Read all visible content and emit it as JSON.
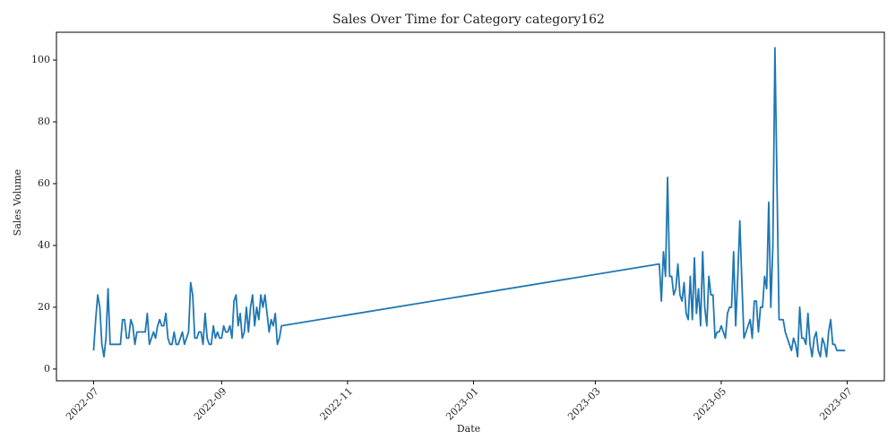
{
  "chart_data": {
    "type": "line",
    "title": "Sales Over Time for Category category162",
    "xlabel": "Date",
    "ylabel": "Sales Volume",
    "x": [
      "2022-07-01",
      "2022-07-02",
      "2022-07-03",
      "2022-07-04",
      "2022-07-05",
      "2022-07-06",
      "2022-07-07",
      "2022-07-08",
      "2022-07-09",
      "2022-07-10",
      "2022-07-11",
      "2022-07-12",
      "2022-07-13",
      "2022-07-14",
      "2022-07-15",
      "2022-07-16",
      "2022-07-17",
      "2022-07-18",
      "2022-07-19",
      "2022-07-20",
      "2022-07-21",
      "2022-07-22",
      "2022-07-23",
      "2022-07-24",
      "2022-07-25",
      "2022-07-26",
      "2022-07-27",
      "2022-07-28",
      "2022-07-29",
      "2022-07-30",
      "2022-07-31",
      "2022-08-01",
      "2022-08-02",
      "2022-08-03",
      "2022-08-04",
      "2022-08-05",
      "2022-08-06",
      "2022-08-07",
      "2022-08-08",
      "2022-08-09",
      "2022-08-10",
      "2022-08-11",
      "2022-08-12",
      "2022-08-13",
      "2022-08-14",
      "2022-08-15",
      "2022-08-16",
      "2022-08-17",
      "2022-08-18",
      "2022-08-19",
      "2022-08-20",
      "2022-08-21",
      "2022-08-22",
      "2022-08-23",
      "2022-08-24",
      "2022-08-25",
      "2022-08-26",
      "2022-08-27",
      "2022-08-28",
      "2022-08-29",
      "2022-08-30",
      "2022-08-31",
      "2022-09-01",
      "2022-09-02",
      "2022-09-03",
      "2022-09-04",
      "2022-09-05",
      "2022-09-06",
      "2022-09-07",
      "2022-09-08",
      "2022-09-09",
      "2022-09-10",
      "2022-09-11",
      "2022-09-12",
      "2022-09-13",
      "2022-09-14",
      "2022-09-15",
      "2022-09-16",
      "2022-09-17",
      "2022-09-18",
      "2022-09-19",
      "2022-09-20",
      "2022-09-21",
      "2022-09-22",
      "2022-09-23",
      "2022-09-24",
      "2022-09-25",
      "2022-09-26",
      "2022-09-27",
      "2022-09-28",
      "2022-09-29",
      "2022-09-30",
      "2023-04-01",
      "2023-04-02",
      "2023-04-03",
      "2023-04-04",
      "2023-04-05",
      "2023-04-06",
      "2023-04-07",
      "2023-04-08",
      "2023-04-09",
      "2023-04-10",
      "2023-04-11",
      "2023-04-12",
      "2023-04-13",
      "2023-04-14",
      "2023-04-15",
      "2023-04-16",
      "2023-04-17",
      "2023-04-18",
      "2023-04-19",
      "2023-04-20",
      "2023-04-21",
      "2023-04-22",
      "2023-04-23",
      "2023-04-24",
      "2023-04-25",
      "2023-04-26",
      "2023-04-27",
      "2023-04-28",
      "2023-04-29",
      "2023-04-30",
      "2023-05-01",
      "2023-05-02",
      "2023-05-03",
      "2023-05-04",
      "2023-05-05",
      "2023-05-06",
      "2023-05-07",
      "2023-05-08",
      "2023-05-09",
      "2023-05-10",
      "2023-05-11",
      "2023-05-12",
      "2023-05-13",
      "2023-05-14",
      "2023-05-15",
      "2023-05-16",
      "2023-05-17",
      "2023-05-18",
      "2023-05-19",
      "2023-05-20",
      "2023-05-21",
      "2023-05-22",
      "2023-05-23",
      "2023-05-24",
      "2023-05-25",
      "2023-05-26",
      "2023-05-27",
      "2023-05-28",
      "2023-05-29",
      "2023-05-30",
      "2023-05-31",
      "2023-06-01",
      "2023-06-02",
      "2023-06-03",
      "2023-06-04",
      "2023-06-05",
      "2023-06-06",
      "2023-06-07",
      "2023-06-08",
      "2023-06-09",
      "2023-06-10",
      "2023-06-11",
      "2023-06-12",
      "2023-06-13",
      "2023-06-14",
      "2023-06-15",
      "2023-06-16",
      "2023-06-17",
      "2023-06-18",
      "2023-06-19",
      "2023-06-20",
      "2023-06-21",
      "2023-06-22",
      "2023-06-23",
      "2023-06-24",
      "2023-06-25",
      "2023-06-26",
      "2023-06-27",
      "2023-06-28",
      "2023-06-29",
      "2023-06-30"
    ],
    "values": [
      6,
      16,
      24,
      20,
      8,
      4,
      10,
      26,
      8,
      8,
      8,
      8,
      8,
      8,
      16,
      16,
      10,
      10,
      16,
      14,
      8,
      12,
      12,
      12,
      12,
      12,
      18,
      8,
      10,
      12,
      10,
      14,
      16,
      14,
      14,
      18,
      10,
      8,
      8,
      12,
      8,
      8,
      10,
      12,
      8,
      10,
      12,
      28,
      24,
      10,
      10,
      12,
      12,
      8,
      18,
      10,
      8,
      8,
      14,
      10,
      12,
      10,
      10,
      14,
      12,
      12,
      14,
      10,
      22,
      24,
      14,
      18,
      10,
      12,
      20,
      12,
      20,
      24,
      14,
      20,
      16,
      24,
      20,
      24,
      18,
      12,
      16,
      14,
      18,
      8,
      10,
      14,
      34,
      22,
      38,
      30,
      62,
      30,
      30,
      24,
      26,
      34,
      24,
      22,
      28,
      18,
      16,
      30,
      16,
      36,
      18,
      26,
      14,
      38,
      20,
      14,
      30,
      24,
      24,
      10,
      12,
      12,
      14,
      12,
      10,
      18,
      20,
      20,
      38,
      14,
      30,
      48,
      28,
      10,
      12,
      14,
      16,
      10,
      22,
      22,
      12,
      20,
      20,
      30,
      26,
      54,
      20,
      40,
      104,
      60,
      16,
      16,
      16,
      12,
      10,
      8,
      6,
      10,
      8,
      4,
      20,
      10,
      10,
      8,
      18,
      8,
      4,
      10,
      12,
      6,
      4,
      10,
      8,
      4,
      12,
      16,
      8,
      8,
      6,
      6,
      6,
      6,
      6
    ],
    "color": "#1f77b4",
    "xlim": [
      "2022-06-13",
      "2023-07-19"
    ],
    "xticks": [
      {
        "value": "2022-07-01",
        "label": "2022-07"
      },
      {
        "value": "2022-09-01",
        "label": "2022-09"
      },
      {
        "value": "2022-11-01",
        "label": "2022-11"
      },
      {
        "value": "2023-01-01",
        "label": "2023-01"
      },
      {
        "value": "2023-03-01",
        "label": "2023-03"
      },
      {
        "value": "2023-05-01",
        "label": "2023-05"
      },
      {
        "value": "2023-07-01",
        "label": "2023-07"
      }
    ],
    "ylim": [
      -3.8,
      109
    ],
    "yticks": [
      0,
      20,
      40,
      60,
      80,
      100
    ]
  }
}
